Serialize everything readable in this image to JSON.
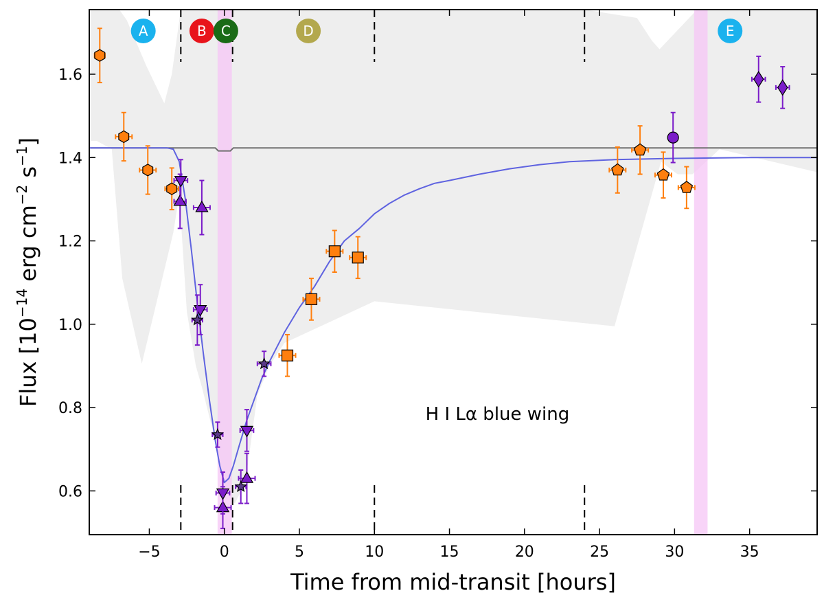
{
  "chart_data": {
    "type": "scatter",
    "title": "",
    "xlabel": "Time from mid-transit [hours]",
    "ylabel_parts": {
      "flux": "Flux [10",
      "exp1": "−14",
      "units": " erg cm",
      "exp2": "−2",
      "s": " s",
      "exp3": "−1",
      "close": "]"
    },
    "xlim": [
      -9,
      39.5
    ],
    "ylim": [
      0.495,
      1.755
    ],
    "xticks": [
      -5,
      0,
      5,
      10,
      15,
      20,
      25,
      30,
      35
    ],
    "xtick_labels": [
      "−5",
      "0",
      "5",
      "10",
      "15",
      "20",
      "25",
      "30",
      "35"
    ],
    "yticks": [
      0.6,
      0.8,
      1.0,
      1.2,
      1.4,
      1.6
    ],
    "ytick_labels": [
      "0.6",
      "0.8",
      "1.0",
      "1.2",
      "1.4",
      "1.6"
    ],
    "annotation": {
      "text": "H I Lα blue wing",
      "x": 18.2,
      "y": 0.785
    },
    "phase_lines": [
      -2.9,
      0.55,
      10.0,
      24.0
    ],
    "phase_labels": [
      {
        "label": "A",
        "x": -5.4,
        "color": "#1ab2ee"
      },
      {
        "label": "B",
        "x": -1.5,
        "color": "#e8141b"
      },
      {
        "label": "C",
        "x": 0.1,
        "color": "#1a6b16"
      },
      {
        "label": "D",
        "x": 5.6,
        "color": "#b3a84d"
      },
      {
        "label": "E",
        "x": 33.7,
        "color": "#1ab2ee"
      }
    ],
    "shaded_bands": [
      {
        "x0": -0.45,
        "x1": 0.5,
        "color": "#f5c6f5"
      },
      {
        "x0": 31.3,
        "x1": 32.2,
        "color": "#f5c6f5"
      }
    ],
    "envelope": {
      "upper": [
        [
          -9,
          1.755
        ],
        [
          -7,
          1.755
        ],
        [
          -6.5,
          1.73
        ],
        [
          -5.2,
          1.62
        ],
        [
          -4,
          1.53
        ],
        [
          -3.5,
          1.6
        ],
        [
          -2.9,
          1.755
        ],
        [
          10.5,
          1.755
        ],
        [
          24,
          1.755
        ],
        [
          27.5,
          1.735
        ],
        [
          28.5,
          1.68
        ],
        [
          29,
          1.66
        ],
        [
          31.5,
          1.755
        ],
        [
          39.5,
          1.755
        ]
      ],
      "lower": [
        [
          39.5,
          1.365
        ],
        [
          33,
          1.42
        ],
        [
          31.2,
          1.36
        ],
        [
          30.2,
          1.36
        ],
        [
          29.1,
          1.39
        ],
        [
          26,
          0.995
        ],
        [
          10,
          1.055
        ],
        [
          4,
          0.955
        ],
        [
          3,
          0.9
        ],
        [
          2.2,
          0.83
        ],
        [
          1.4,
          0.62
        ],
        [
          0.7,
          0.57
        ],
        [
          0.1,
          0.6
        ],
        [
          -0.6,
          0.72
        ],
        [
          -1.5,
          0.85
        ],
        [
          -1.9,
          0.9
        ],
        [
          -2.5,
          1.03
        ],
        [
          -3.0,
          1.31
        ],
        [
          -3.4,
          1.22
        ],
        [
          -5.5,
          0.905
        ],
        [
          -6.8,
          1.11
        ],
        [
          -7.5,
          1.42
        ],
        [
          -8.5,
          1.44
        ],
        [
          -9,
          1.44
        ]
      ]
    },
    "series": [
      {
        "name": "unocculted model",
        "kind": "line",
        "color": "#707070",
        "points": [
          [
            -9,
            1.423
          ],
          [
            -0.6,
            1.423
          ],
          [
            -0.4,
            1.416
          ],
          [
            0.4,
            1.416
          ],
          [
            0.6,
            1.423
          ],
          [
            39.5,
            1.423
          ]
        ]
      },
      {
        "name": "best-fit model",
        "kind": "line",
        "color": "#5f63e0",
        "points": [
          [
            -9,
            1.423
          ],
          [
            -3.8,
            1.423
          ],
          [
            -3.4,
            1.42
          ],
          [
            -3.0,
            1.39
          ],
          [
            -2.6,
            1.3
          ],
          [
            -2.2,
            1.18
          ],
          [
            -1.8,
            1.05
          ],
          [
            -1.4,
            0.93
          ],
          [
            -1.0,
            0.82
          ],
          [
            -0.6,
            0.72
          ],
          [
            -0.3,
            0.66
          ],
          [
            0.0,
            0.62
          ],
          [
            0.3,
            0.63
          ],
          [
            0.6,
            0.66
          ],
          [
            1.0,
            0.71
          ],
          [
            1.5,
            0.77
          ],
          [
            2.0,
            0.82
          ],
          [
            2.5,
            0.87
          ],
          [
            3.0,
            0.91
          ],
          [
            4.0,
            0.98
          ],
          [
            5.0,
            1.04
          ],
          [
            6.0,
            1.09
          ],
          [
            7.0,
            1.15
          ],
          [
            8.0,
            1.2
          ],
          [
            9.0,
            1.23
          ],
          [
            10.0,
            1.265
          ],
          [
            11.0,
            1.29
          ],
          [
            12.0,
            1.31
          ],
          [
            13.0,
            1.325
          ],
          [
            14.0,
            1.338
          ],
          [
            15.0,
            1.345
          ],
          [
            17.0,
            1.36
          ],
          [
            19.0,
            1.373
          ],
          [
            21.0,
            1.383
          ],
          [
            23.0,
            1.39
          ],
          [
            26.0,
            1.395
          ],
          [
            30.0,
            1.398
          ],
          [
            35.0,
            1.4
          ],
          [
            39.5,
            1.4
          ]
        ]
      },
      {
        "name": "hexagon visit",
        "kind": "points",
        "marker": "hexagon",
        "fill": "#ff7f0e",
        "err_color": "#ff7f0e",
        "points": [
          [
            -8.3,
            1.645,
            0.35,
            0.065
          ],
          [
            -6.7,
            1.45,
            0.55,
            0.058
          ],
          [
            -5.1,
            1.37,
            0.55,
            0.058
          ],
          [
            -3.5,
            1.325,
            0.45,
            0.05
          ]
        ]
      },
      {
        "name": "up-triangle visit",
        "kind": "points",
        "marker": "triangle-up",
        "fill": "#7b1cc9",
        "err_color": "#7b1cc9",
        "points": [
          [
            -2.95,
            1.295,
            0.4,
            0.065
          ],
          [
            -1.5,
            1.28,
            0.55,
            0.065
          ],
          [
            -0.1,
            0.56,
            0.55,
            0.05
          ],
          [
            1.5,
            0.63,
            0.55,
            0.06
          ]
        ]
      },
      {
        "name": "down-triangle visit",
        "kind": "points",
        "marker": "triangle-down",
        "fill": "#7b1cc9",
        "err_color": "#7b1cc9",
        "points": [
          [
            -2.9,
            1.345,
            0.45,
            0.05
          ],
          [
            -1.6,
            1.035,
            0.45,
            0.06
          ],
          [
            -0.1,
            0.595,
            0.45,
            0.05
          ],
          [
            1.5,
            0.745,
            0.45,
            0.05
          ]
        ]
      },
      {
        "name": "star visit",
        "kind": "points",
        "marker": "star",
        "fill": "#5a3a8a",
        "err_color": "#7b1cc9",
        "points": [
          [
            -1.8,
            1.01,
            0.35,
            0.06
          ],
          [
            -0.45,
            0.735,
            0.35,
            0.03
          ],
          [
            1.1,
            0.61,
            0.35,
            0.04
          ],
          [
            2.65,
            0.905,
            0.45,
            0.03
          ]
        ]
      },
      {
        "name": "square visit",
        "kind": "points",
        "marker": "square",
        "fill": "#ff7f0e",
        "err_color": "#ff7f0e",
        "points": [
          [
            4.2,
            0.925,
            0.55,
            0.05
          ],
          [
            5.8,
            1.06,
            0.55,
            0.05
          ],
          [
            7.35,
            1.175,
            0.55,
            0.05
          ],
          [
            8.9,
            1.16,
            0.55,
            0.05
          ]
        ]
      },
      {
        "name": "pentagon visit",
        "kind": "points",
        "marker": "pentagon",
        "fill": "#ff7f0e",
        "err_color": "#ff7f0e",
        "points": [
          [
            26.2,
            1.37,
            0.55,
            0.055
          ],
          [
            27.7,
            1.418,
            0.55,
            0.058
          ],
          [
            29.25,
            1.358,
            0.55,
            0.055
          ],
          [
            30.8,
            1.328,
            0.55,
            0.05
          ]
        ]
      },
      {
        "name": "circle visit",
        "kind": "points",
        "marker": "circle",
        "fill": "#7b1cc9",
        "err_color": "#7b1cc9",
        "points": [
          [
            29.9,
            1.448,
            0.2,
            0.06
          ]
        ]
      },
      {
        "name": "diamond visit",
        "kind": "points",
        "marker": "diamond",
        "fill": "#7b1cc9",
        "err_color": "#7b1cc9",
        "points": [
          [
            35.6,
            1.588,
            0.45,
            0.055
          ],
          [
            37.2,
            1.568,
            0.45,
            0.05
          ]
        ]
      }
    ]
  }
}
